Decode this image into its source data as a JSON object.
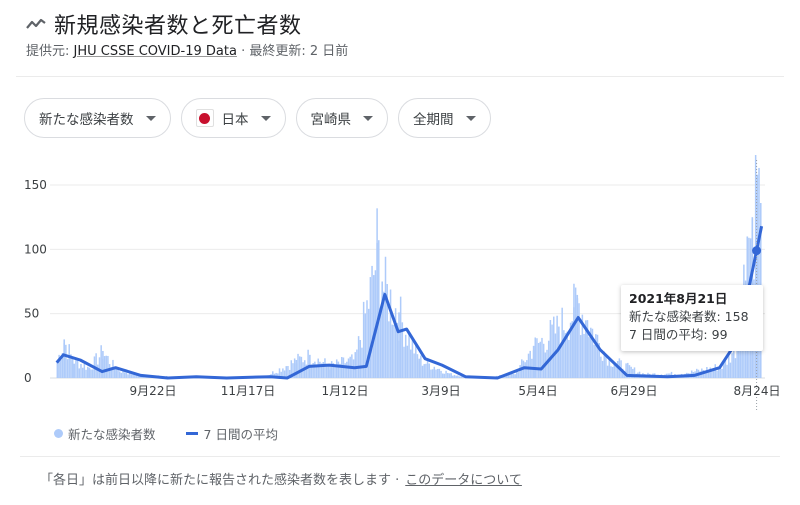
{
  "header": {
    "title": "新規感染者数と死亡者数",
    "icon": "trending-line-icon",
    "source_prefix": "提供元: ",
    "source_link": "JHU CSSE COVID-19 Data",
    "updated": " · 最終更新: 2 日前"
  },
  "filters": [
    {
      "label": "新たな感染者数"
    },
    {
      "label": "日本",
      "flag": "japan-flag-icon"
    },
    {
      "label": "宮崎県"
    },
    {
      "label": "全期間"
    }
  ],
  "tooltip": {
    "date": "2021年8月21日",
    "line1": "新たな感染者数: 158",
    "line2": "7 日間の平均: 99"
  },
  "legend": {
    "bars": "新たな感染者数",
    "line": "7 日間の平均"
  },
  "footer": {
    "note": "「各日」は前日以降に新たに報告された感染者数を表します ·",
    "link": "このデータについて"
  },
  "colors": {
    "bar": "#aecbfa",
    "line": "#3367d6",
    "grid": "#ebebeb",
    "text": "#3c4043"
  },
  "chart_data": {
    "type": "bar",
    "title": "新規感染者数と死亡者数",
    "xlabel": "",
    "ylabel": "",
    "ylim": [
      0,
      150
    ],
    "yticks": [
      0,
      50,
      100,
      150
    ],
    "grid": true,
    "legend_position": "bottom-left",
    "x_tick_labels": [
      "9月22日",
      "11月17日",
      "1月12日",
      "3月9日",
      "5月4日",
      "6月29日",
      "8月24日"
    ],
    "series": [
      {
        "name": "新たな感染者数",
        "type": "bar",
        "points": [
          {
            "x": "2020-07-01",
            "y": 14
          },
          {
            "x": "2020-07-05",
            "y": 30
          },
          {
            "x": "2020-07-10",
            "y": 15
          },
          {
            "x": "2020-07-20",
            "y": 8
          },
          {
            "x": "2020-07-28",
            "y": 21
          },
          {
            "x": "2020-08-05",
            "y": 7
          },
          {
            "x": "2020-08-20",
            "y": 2
          },
          {
            "x": "2020-09-10",
            "y": 1
          },
          {
            "x": "2020-10-01",
            "y": 0
          },
          {
            "x": "2020-11-01",
            "y": 1
          },
          {
            "x": "2020-11-20",
            "y": 14
          },
          {
            "x": "2020-11-28",
            "y": 18
          },
          {
            "x": "2020-12-10",
            "y": 10
          },
          {
            "x": "2020-12-25",
            "y": 15
          },
          {
            "x": "2021-01-05",
            "y": 80
          },
          {
            "x": "2021-01-07",
            "y": 105
          },
          {
            "x": "2021-01-10",
            "y": 75
          },
          {
            "x": "2021-01-20",
            "y": 51
          },
          {
            "x": "2021-02-01",
            "y": 15
          },
          {
            "x": "2021-02-20",
            "y": 3
          },
          {
            "x": "2021-03-09",
            "y": 0
          },
          {
            "x": "2021-03-30",
            "y": 3
          },
          {
            "x": "2021-04-10",
            "y": 25
          },
          {
            "x": "2021-04-25",
            "y": 40
          },
          {
            "x": "2021-05-04",
            "y": 55
          },
          {
            "x": "2021-05-06",
            "y": 62
          },
          {
            "x": "2021-05-12",
            "y": 45
          },
          {
            "x": "2021-05-25",
            "y": 15
          },
          {
            "x": "2021-06-15",
            "y": 3
          },
          {
            "x": "2021-07-10",
            "y": 4
          },
          {
            "x": "2021-08-01",
            "y": 10
          },
          {
            "x": "2021-08-10",
            "y": 30
          },
          {
            "x": "2021-08-15",
            "y": 110
          },
          {
            "x": "2021-08-18",
            "y": 125
          },
          {
            "x": "2021-08-21",
            "y": 158
          },
          {
            "x": "2021-08-23",
            "y": 136
          }
        ]
      },
      {
        "name": "7 日間の平均",
        "type": "line",
        "points": [
          {
            "x": "2020-07-01",
            "y": 12
          },
          {
            "x": "2020-07-05",
            "y": 18
          },
          {
            "x": "2020-07-15",
            "y": 14
          },
          {
            "x": "2020-07-28",
            "y": 5
          },
          {
            "x": "2020-08-05",
            "y": 8
          },
          {
            "x": "2020-08-20",
            "y": 2
          },
          {
            "x": "2020-09-05",
            "y": 0
          },
          {
            "x": "2020-09-22",
            "y": 1
          },
          {
            "x": "2020-10-10",
            "y": 0
          },
          {
            "x": "2020-11-05",
            "y": 1
          },
          {
            "x": "2020-11-15",
            "y": 0
          },
          {
            "x": "2020-11-28",
            "y": 9
          },
          {
            "x": "2020-12-10",
            "y": 10
          },
          {
            "x": "2020-12-25",
            "y": 8
          },
          {
            "x": "2021-01-01",
            "y": 9
          },
          {
            "x": "2021-01-12",
            "y": 65
          },
          {
            "x": "2021-01-20",
            "y": 36
          },
          {
            "x": "2021-01-25",
            "y": 38
          },
          {
            "x": "2021-02-05",
            "y": 15
          },
          {
            "x": "2021-02-15",
            "y": 10
          },
          {
            "x": "2021-03-01",
            "y": 1
          },
          {
            "x": "2021-03-20",
            "y": 0
          },
          {
            "x": "2021-04-05",
            "y": 8
          },
          {
            "x": "2021-04-15",
            "y": 7
          },
          {
            "x": "2021-04-25",
            "y": 22
          },
          {
            "x": "2021-05-07",
            "y": 47
          },
          {
            "x": "2021-05-20",
            "y": 22
          },
          {
            "x": "2021-06-05",
            "y": 2
          },
          {
            "x": "2021-06-29",
            "y": 1
          },
          {
            "x": "2021-07-15",
            "y": 2
          },
          {
            "x": "2021-07-30",
            "y": 8
          },
          {
            "x": "2021-08-10",
            "y": 30
          },
          {
            "x": "2021-08-21",
            "y": 99
          },
          {
            "x": "2021-08-24",
            "y": 118
          }
        ]
      }
    ],
    "highlight": {
      "x": "2021-08-21",
      "bars": 158,
      "avg": 99
    }
  }
}
